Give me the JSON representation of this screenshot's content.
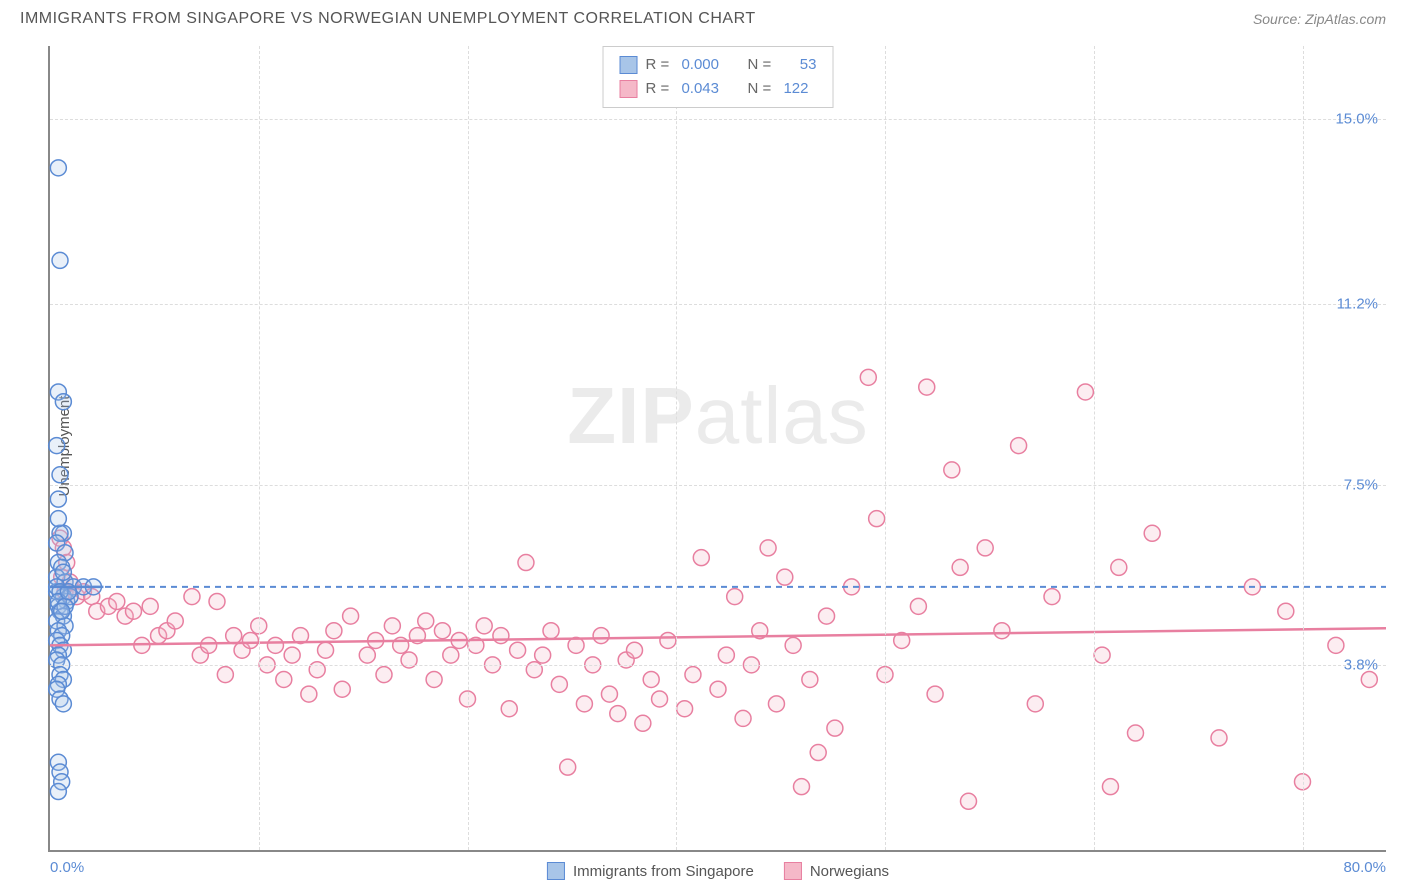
{
  "header": {
    "title": "IMMIGRANTS FROM SINGAPORE VS NORWEGIAN UNEMPLOYMENT CORRELATION CHART",
    "source_prefix": "Source: ",
    "source_name": "ZipAtlas.com"
  },
  "axes": {
    "y_label": "Unemployment",
    "x_min_label": "0.0%",
    "x_max_label": "80.0%",
    "y_ticks": [
      {
        "value": 3.8,
        "label": "3.8%"
      },
      {
        "value": 7.5,
        "label": "7.5%"
      },
      {
        "value": 11.2,
        "label": "11.2%"
      },
      {
        "value": 15.0,
        "label": "15.0%"
      }
    ],
    "x_ticks_pct": [
      12.5,
      25.0,
      37.5,
      50.0,
      62.5,
      75.0
    ],
    "xlim": [
      0,
      80
    ],
    "ylim": [
      0,
      16.5
    ]
  },
  "styling": {
    "background_color": "#ffffff",
    "grid_color": "#dddddd",
    "axis_color": "#888888",
    "title_color": "#555555",
    "tick_label_color": "#5b8bd4",
    "title_fontsize": 16,
    "tick_fontsize": 15,
    "marker_radius": 8,
    "marker_fill_opacity": 0.25,
    "marker_stroke_width": 1.5,
    "trendline_width": 2.5
  },
  "watermark": {
    "text_bold": "ZIP",
    "text_light": "atlas"
  },
  "series": {
    "blue": {
      "name": "Immigrants from Singapore",
      "R": "0.000",
      "N": "53",
      "fill": "#a8c5e8",
      "stroke": "#5b8bd4",
      "trend_dash": "6,5",
      "trend_y1": 5.4,
      "trend_y2": 5.4,
      "trend_left_y": 5.4,
      "trend_left_x0": 0,
      "trend_left_x1": 3.2,
      "points": [
        [
          0.5,
          14.0
        ],
        [
          0.6,
          12.1
        ],
        [
          0.5,
          9.4
        ],
        [
          0.8,
          9.2
        ],
        [
          0.4,
          8.3
        ],
        [
          0.6,
          7.7
        ],
        [
          0.5,
          7.2
        ],
        [
          0.8,
          6.5
        ],
        [
          0.6,
          6.5
        ],
        [
          0.4,
          6.3
        ],
        [
          0.9,
          6.1
        ],
        [
          0.5,
          5.9
        ],
        [
          0.7,
          5.8
        ],
        [
          0.4,
          5.6
        ],
        [
          0.9,
          5.5
        ],
        [
          1.4,
          5.4
        ],
        [
          2.0,
          5.4
        ],
        [
          2.6,
          5.4
        ],
        [
          0.4,
          5.3
        ],
        [
          0.8,
          5.2
        ],
        [
          1.0,
          5.1
        ],
        [
          0.5,
          5.0
        ],
        [
          0.6,
          4.9
        ],
        [
          0.8,
          4.8
        ],
        [
          0.4,
          4.7
        ],
        [
          0.9,
          4.6
        ],
        [
          0.5,
          4.5
        ],
        [
          0.7,
          4.4
        ],
        [
          0.4,
          4.3
        ],
        [
          0.6,
          4.2
        ],
        [
          0.8,
          4.1
        ],
        [
          0.5,
          4.0
        ],
        [
          0.4,
          3.9
        ],
        [
          0.7,
          3.8
        ],
        [
          0.6,
          3.6
        ],
        [
          0.8,
          3.5
        ],
        [
          0.5,
          3.4
        ],
        [
          0.4,
          3.3
        ],
        [
          1.2,
          5.2
        ],
        [
          0.6,
          3.1
        ],
        [
          0.8,
          3.0
        ],
        [
          0.5,
          1.8
        ],
        [
          0.6,
          1.6
        ],
        [
          0.7,
          1.4
        ],
        [
          0.5,
          1.2
        ],
        [
          0.4,
          5.4
        ],
        [
          0.6,
          5.3
        ],
        [
          0.5,
          5.1
        ],
        [
          0.9,
          5.0
        ],
        [
          0.7,
          4.9
        ],
        [
          1.1,
          5.3
        ],
        [
          0.5,
          6.8
        ],
        [
          0.8,
          5.7
        ]
      ]
    },
    "pink": {
      "name": "Norwegians",
      "R": "0.043",
      "N": "122",
      "fill": "#f5b8c8",
      "stroke": "#e87fa0",
      "trend_dash": "none",
      "trend_y1": 4.2,
      "trend_y2": 4.55,
      "points": [
        [
          0.6,
          6.4
        ],
        [
          0.8,
          6.2
        ],
        [
          1.0,
          5.9
        ],
        [
          0.7,
          5.6
        ],
        [
          0.9,
          5.3
        ],
        [
          1.2,
          5.5
        ],
        [
          1.6,
          5.2
        ],
        [
          2.0,
          5.3
        ],
        [
          2.5,
          5.2
        ],
        [
          2.8,
          4.9
        ],
        [
          3.5,
          5.0
        ],
        [
          4.0,
          5.1
        ],
        [
          4.5,
          4.8
        ],
        [
          5.0,
          4.9
        ],
        [
          5.5,
          4.2
        ],
        [
          6.0,
          5.0
        ],
        [
          6.5,
          4.4
        ],
        [
          7.0,
          4.5
        ],
        [
          7.5,
          4.7
        ],
        [
          8.5,
          5.2
        ],
        [
          9.0,
          4.0
        ],
        [
          9.5,
          4.2
        ],
        [
          10.0,
          5.1
        ],
        [
          10.5,
          3.6
        ],
        [
          11.0,
          4.4
        ],
        [
          11.5,
          4.1
        ],
        [
          12.0,
          4.3
        ],
        [
          12.5,
          4.6
        ],
        [
          13.0,
          3.8
        ],
        [
          13.5,
          4.2
        ],
        [
          14.0,
          3.5
        ],
        [
          14.5,
          4.0
        ],
        [
          15.0,
          4.4
        ],
        [
          15.5,
          3.2
        ],
        [
          16.0,
          3.7
        ],
        [
          16.5,
          4.1
        ],
        [
          17.0,
          4.5
        ],
        [
          17.5,
          3.3
        ],
        [
          18.0,
          4.8
        ],
        [
          19.0,
          4.0
        ],
        [
          19.5,
          4.3
        ],
        [
          20.0,
          3.6
        ],
        [
          20.5,
          4.6
        ],
        [
          21.0,
          4.2
        ],
        [
          21.5,
          3.9
        ],
        [
          22.0,
          4.4
        ],
        [
          22.5,
          4.7
        ],
        [
          23.0,
          3.5
        ],
        [
          23.5,
          4.5
        ],
        [
          24.0,
          4.0
        ],
        [
          24.5,
          4.3
        ],
        [
          25.0,
          3.1
        ],
        [
          25.5,
          4.2
        ],
        [
          26.0,
          4.6
        ],
        [
          26.5,
          3.8
        ],
        [
          27.0,
          4.4
        ],
        [
          27.5,
          2.9
        ],
        [
          28.0,
          4.1
        ],
        [
          28.5,
          5.9
        ],
        [
          29.0,
          3.7
        ],
        [
          29.5,
          4.0
        ],
        [
          30.0,
          4.5
        ],
        [
          30.5,
          3.4
        ],
        [
          31.0,
          1.7
        ],
        [
          31.5,
          4.2
        ],
        [
          32.0,
          3.0
        ],
        [
          32.5,
          3.8
        ],
        [
          33.0,
          4.4
        ],
        [
          33.5,
          3.2
        ],
        [
          34.0,
          2.8
        ],
        [
          34.5,
          3.9
        ],
        [
          35.0,
          4.1
        ],
        [
          35.5,
          2.6
        ],
        [
          36.0,
          3.5
        ],
        [
          36.5,
          3.1
        ],
        [
          37.0,
          4.3
        ],
        [
          38.0,
          2.9
        ],
        [
          38.5,
          3.6
        ],
        [
          39.0,
          6.0
        ],
        [
          40.0,
          3.3
        ],
        [
          40.5,
          4.0
        ],
        [
          41.0,
          5.2
        ],
        [
          41.5,
          2.7
        ],
        [
          42.0,
          3.8
        ],
        [
          42.5,
          4.5
        ],
        [
          43.0,
          6.2
        ],
        [
          43.5,
          3.0
        ],
        [
          44.0,
          5.6
        ],
        [
          44.5,
          4.2
        ],
        [
          45.0,
          1.3
        ],
        [
          45.5,
          3.5
        ],
        [
          46.0,
          2.0
        ],
        [
          46.5,
          4.8
        ],
        [
          47.0,
          2.5
        ],
        [
          48.0,
          5.4
        ],
        [
          49.0,
          9.7
        ],
        [
          49.5,
          6.8
        ],
        [
          50.0,
          3.6
        ],
        [
          51.0,
          4.3
        ],
        [
          52.0,
          5.0
        ],
        [
          52.5,
          9.5
        ],
        [
          53.0,
          3.2
        ],
        [
          54.0,
          7.8
        ],
        [
          54.5,
          5.8
        ],
        [
          55.0,
          1.0
        ],
        [
          56.0,
          6.2
        ],
        [
          57.0,
          4.5
        ],
        [
          58.0,
          8.3
        ],
        [
          59.0,
          3.0
        ],
        [
          60.0,
          5.2
        ],
        [
          62.0,
          9.4
        ],
        [
          63.0,
          4.0
        ],
        [
          63.5,
          1.3
        ],
        [
          64.0,
          5.8
        ],
        [
          65.0,
          2.4
        ],
        [
          66.0,
          6.5
        ],
        [
          70.0,
          2.3
        ],
        [
          72.0,
          5.4
        ],
        [
          74.0,
          4.9
        ],
        [
          75.0,
          1.4
        ],
        [
          77.0,
          4.2
        ],
        [
          79.0,
          3.5
        ]
      ]
    }
  },
  "legend_bottom": [
    {
      "key": "blue"
    },
    {
      "key": "pink"
    }
  ],
  "legend_top_labels": {
    "R_prefix": "R = ",
    "N_prefix": "N = "
  }
}
